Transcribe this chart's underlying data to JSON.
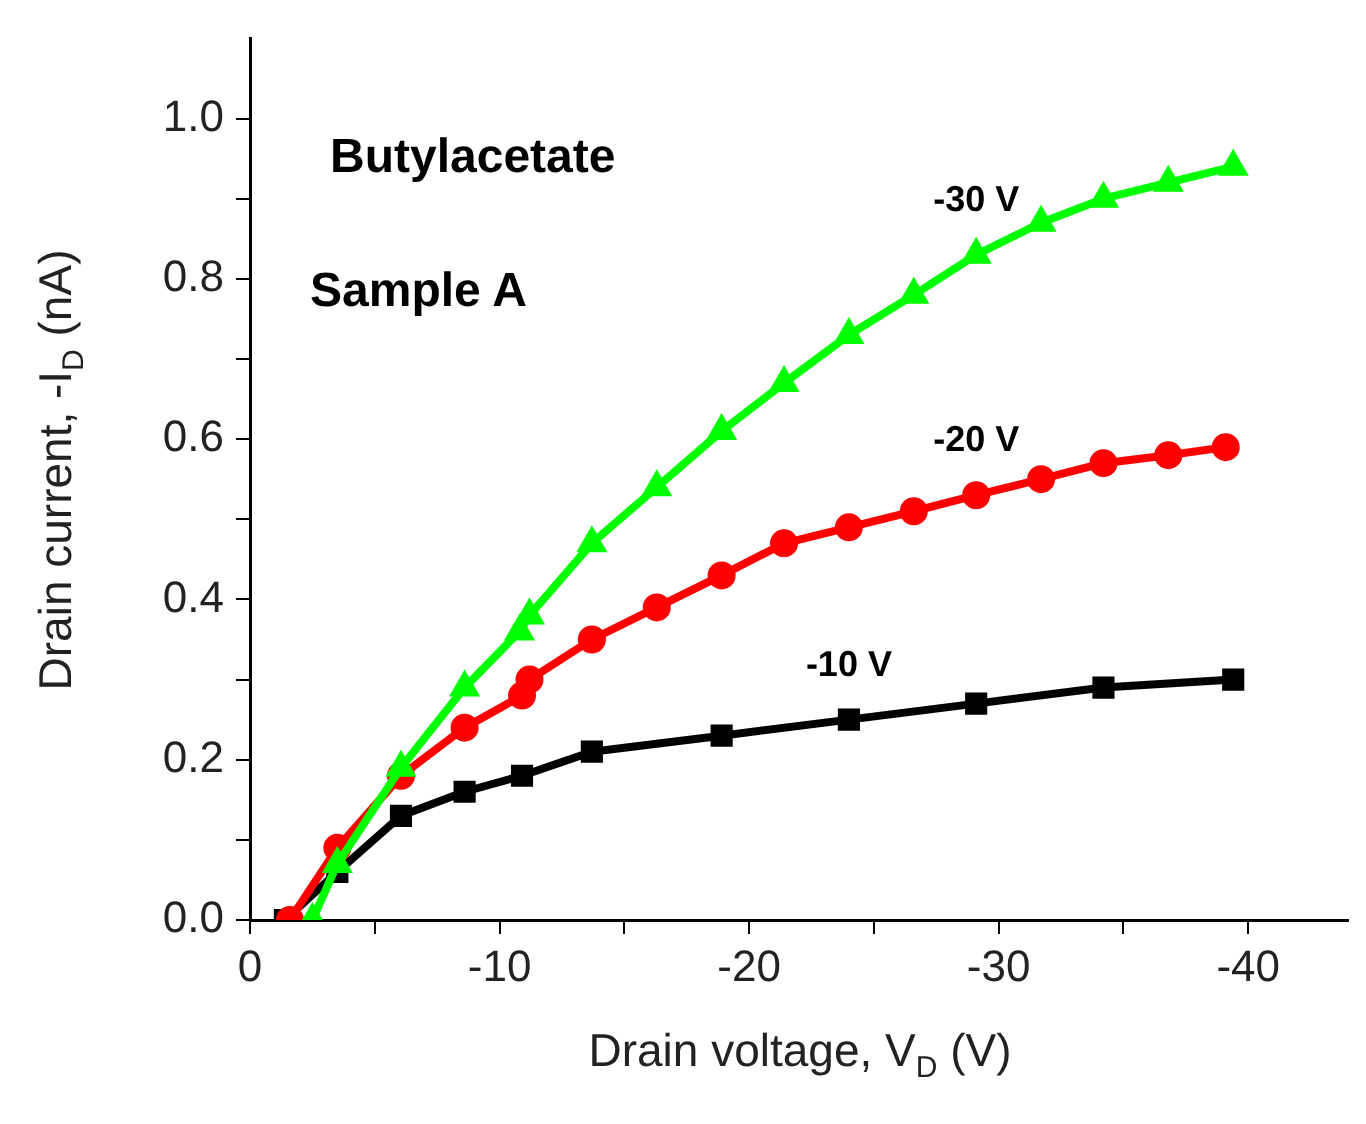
{
  "chart_data": {
    "type": "line",
    "xlabel": "Drain voltage, V$_{D}$ (V)",
    "ylabel": "Drain current, -I$_{D}$ (nA)",
    "annotations": [
      "Butylacetate",
      "Sample A"
    ],
    "xlim": [
      0,
      -44
    ],
    "xticks": [
      {
        "value": 0,
        "label": "0"
      },
      {
        "value": -5,
        "label": null
      },
      {
        "value": -10,
        "label": "-10"
      },
      {
        "value": -15,
        "label": null
      },
      {
        "value": -20,
        "label": "-20"
      },
      {
        "value": -25,
        "label": null
      },
      {
        "value": -30,
        "label": "-30"
      },
      {
        "value": -35,
        "label": null
      },
      {
        "value": -40,
        "label": "-40"
      }
    ],
    "ylim": [
      0,
      1.1
    ],
    "yticks": [
      {
        "value": 0,
        "label": "0.0"
      },
      {
        "value": 0.1,
        "label": null
      },
      {
        "value": 0.2,
        "label": "0.2"
      },
      {
        "value": 0.3,
        "label": null
      },
      {
        "value": 0.4,
        "label": "0.4"
      },
      {
        "value": 0.5,
        "label": null
      },
      {
        "value": 0.6,
        "label": "0.6"
      },
      {
        "value": 0.7,
        "label": null
      },
      {
        "value": 0.8,
        "label": "0.8"
      },
      {
        "value": 0.9,
        "label": null
      },
      {
        "value": 1.0,
        "label": "1.0"
      }
    ],
    "series": [
      {
        "name": "-10 V",
        "color": "#000000",
        "marker": "square",
        "x": [
          -1.4,
          -3.5,
          -6.05,
          -8.6,
          -10.9,
          -13.7,
          -18.9,
          -24,
          -29.1,
          -34.2,
          -39.4
        ],
        "values": [
          0,
          0.06,
          0.13,
          0.16,
          0.18,
          0.21,
          0.23,
          0.25,
          0.27,
          0.29,
          0.3
        ]
      },
      {
        "name": "-20 V",
        "color": "#ff0000",
        "marker": "circle",
        "x": [
          -1.6,
          -3.5,
          -6.05,
          -8.6,
          -10.9,
          -11.2,
          -13.7,
          -16.3,
          -18.9,
          -21.4,
          -24,
          -26.6,
          -29.1,
          -31.7,
          -34.2,
          -36.8,
          -39.1
        ],
        "values": [
          0,
          0.09,
          0.18,
          0.24,
          0.28,
          0.3,
          0.35,
          0.39,
          0.43,
          0.47,
          0.49,
          0.51,
          0.53,
          0.55,
          0.57,
          0.58,
          0.59
        ]
      },
      {
        "name": "-30 V",
        "color": "#00ff00",
        "marker": "triangle",
        "x": [
          -2.5,
          -3.5,
          -6.05,
          -8.6,
          -10.8,
          -11.2,
          -13.7,
          -16.3,
          -18.9,
          -21.4,
          -24,
          -26.6,
          -29.1,
          -31.7,
          -34.2,
          -36.8,
          -39.4
        ],
        "values": [
          0,
          0.07,
          0.19,
          0.29,
          0.36,
          0.38,
          0.47,
          0.54,
          0.61,
          0.67,
          0.73,
          0.78,
          0.83,
          0.87,
          0.9,
          0.92,
          0.94
        ]
      }
    ]
  }
}
